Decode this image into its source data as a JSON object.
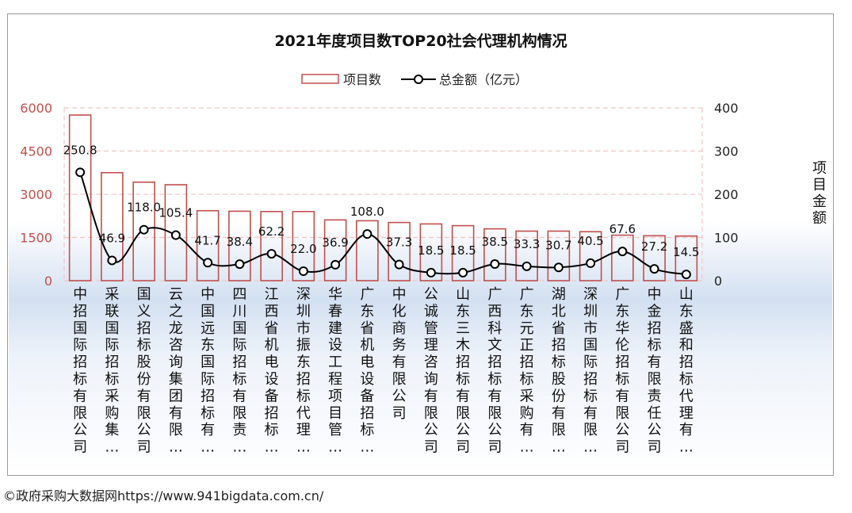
{
  "chart_data": {
    "type": "bar+line",
    "title": "2021年度项目数TOP20社会代理机构情况",
    "legend_position": "top-center",
    "categories": [
      "中招国际招标有限公司",
      "采联国际招标采购集…",
      "国义招标股份有限公司",
      "云之龙咨询集团有限…",
      "中国远东国际招标有…",
      "四川国际招标有限责…",
      "江西省机电设备招标…",
      "深圳市振东招标代理…",
      "华春建设工程项目管…",
      "广东省机电设备招标…",
      "中化商务有限公司",
      "公诚管理咨询有限公司",
      "山东三木招标有限公司",
      "广西科文招标有限公司",
      "广东元正招标采购有…",
      "湖北省招标股份有限…",
      "深圳市国际招标有限…",
      "广东华伦招标有限公司",
      "中金招标有限责任公司",
      "山东盛和招标代理有…"
    ],
    "series": [
      {
        "name": "项目数",
        "kind": "bar",
        "axis": "left",
        "color": "#c0504d",
        "values": [
          5750,
          3750,
          3420,
          3330,
          2430,
          2410,
          2400,
          2400,
          2110,
          2080,
          2020,
          1970,
          1910,
          1800,
          1720,
          1720,
          1700,
          1580,
          1560,
          1550
        ]
      },
      {
        "name": "总金额（亿元）",
        "kind": "line",
        "axis": "right",
        "color": "#000000",
        "values": [
          250.8,
          46.9,
          118.0,
          105.4,
          41.7,
          38.4,
          62.2,
          22.0,
          36.9,
          108.0,
          37.3,
          18.5,
          18.5,
          38.5,
          33.3,
          30.7,
          40.5,
          67.6,
          27.2,
          14.5
        ],
        "labels": [
          "250.8",
          "46.9",
          "118.0",
          "105.4",
          "41.7",
          "38.4",
          "62.2",
          "22.0",
          "36.9",
          "108.0",
          "37.3",
          "18.5",
          "18.5",
          "38.5",
          "33.3",
          "30.7",
          "40.5",
          "67.6",
          "27.2",
          "14.5"
        ]
      }
    ],
    "y_left": {
      "ylim": [
        0,
        6000
      ],
      "ticks": [
        "0",
        "1500",
        "3000",
        "4500",
        "6000"
      ],
      "tick_values": [
        0,
        1500,
        3000,
        4500,
        6000
      ]
    },
    "y_right": {
      "ylim": [
        0,
        400
      ],
      "label": "项目金额",
      "ticks": [
        "0",
        "100",
        "200",
        "300",
        "400"
      ],
      "tick_values": [
        0,
        100,
        200,
        300,
        400
      ]
    },
    "grid": true,
    "colors": {
      "axis_text": "#c0504d",
      "grid": "#f2c6c6",
      "bar_stroke": "#c0504d"
    }
  },
  "footer": {
    "text": "©政府采购大数据网https://www.941bigdata.com.cn/"
  }
}
